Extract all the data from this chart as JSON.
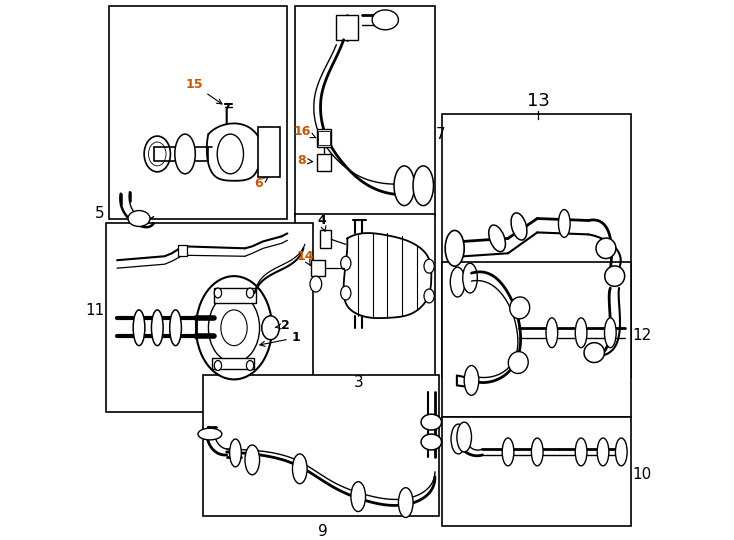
{
  "bg": "#ffffff",
  "fig_width": 7.34,
  "fig_height": 5.4,
  "dpi": 100,
  "boxes": {
    "b5": [
      0.02,
      0.56,
      0.355,
      0.41
    ],
    "b7": [
      0.365,
      0.58,
      0.275,
      0.41
    ],
    "b13": [
      0.64,
      0.305,
      0.35,
      0.665
    ],
    "b3": [
      0.365,
      0.295,
      0.275,
      0.57
    ],
    "b11": [
      0.015,
      0.15,
      0.395,
      0.54
    ],
    "b9": [
      0.195,
      0.02,
      0.445,
      0.275
    ],
    "b12": [
      0.64,
      0.15,
      0.35,
      0.44
    ],
    "b10": [
      0.64,
      0.02,
      0.35,
      0.2
    ]
  },
  "box_labels": {
    "b5": [
      "5",
      "left",
      0.008,
      0.72
    ],
    "b7": [
      "7",
      "right",
      0.635,
      0.755
    ],
    "b13": [
      "13",
      "top",
      0.81,
      0.96
    ],
    "b3": [
      "3",
      "bottom",
      0.5,
      0.28
    ],
    "b11": [
      "11",
      "left",
      0.008,
      0.35
    ],
    "b9": [
      "9",
      "bottom",
      0.418,
      0.008
    ],
    "b12": [
      "12",
      "right",
      0.995,
      0.335
    ],
    "b10": [
      "10",
      "right",
      0.995,
      0.105
    ]
  }
}
